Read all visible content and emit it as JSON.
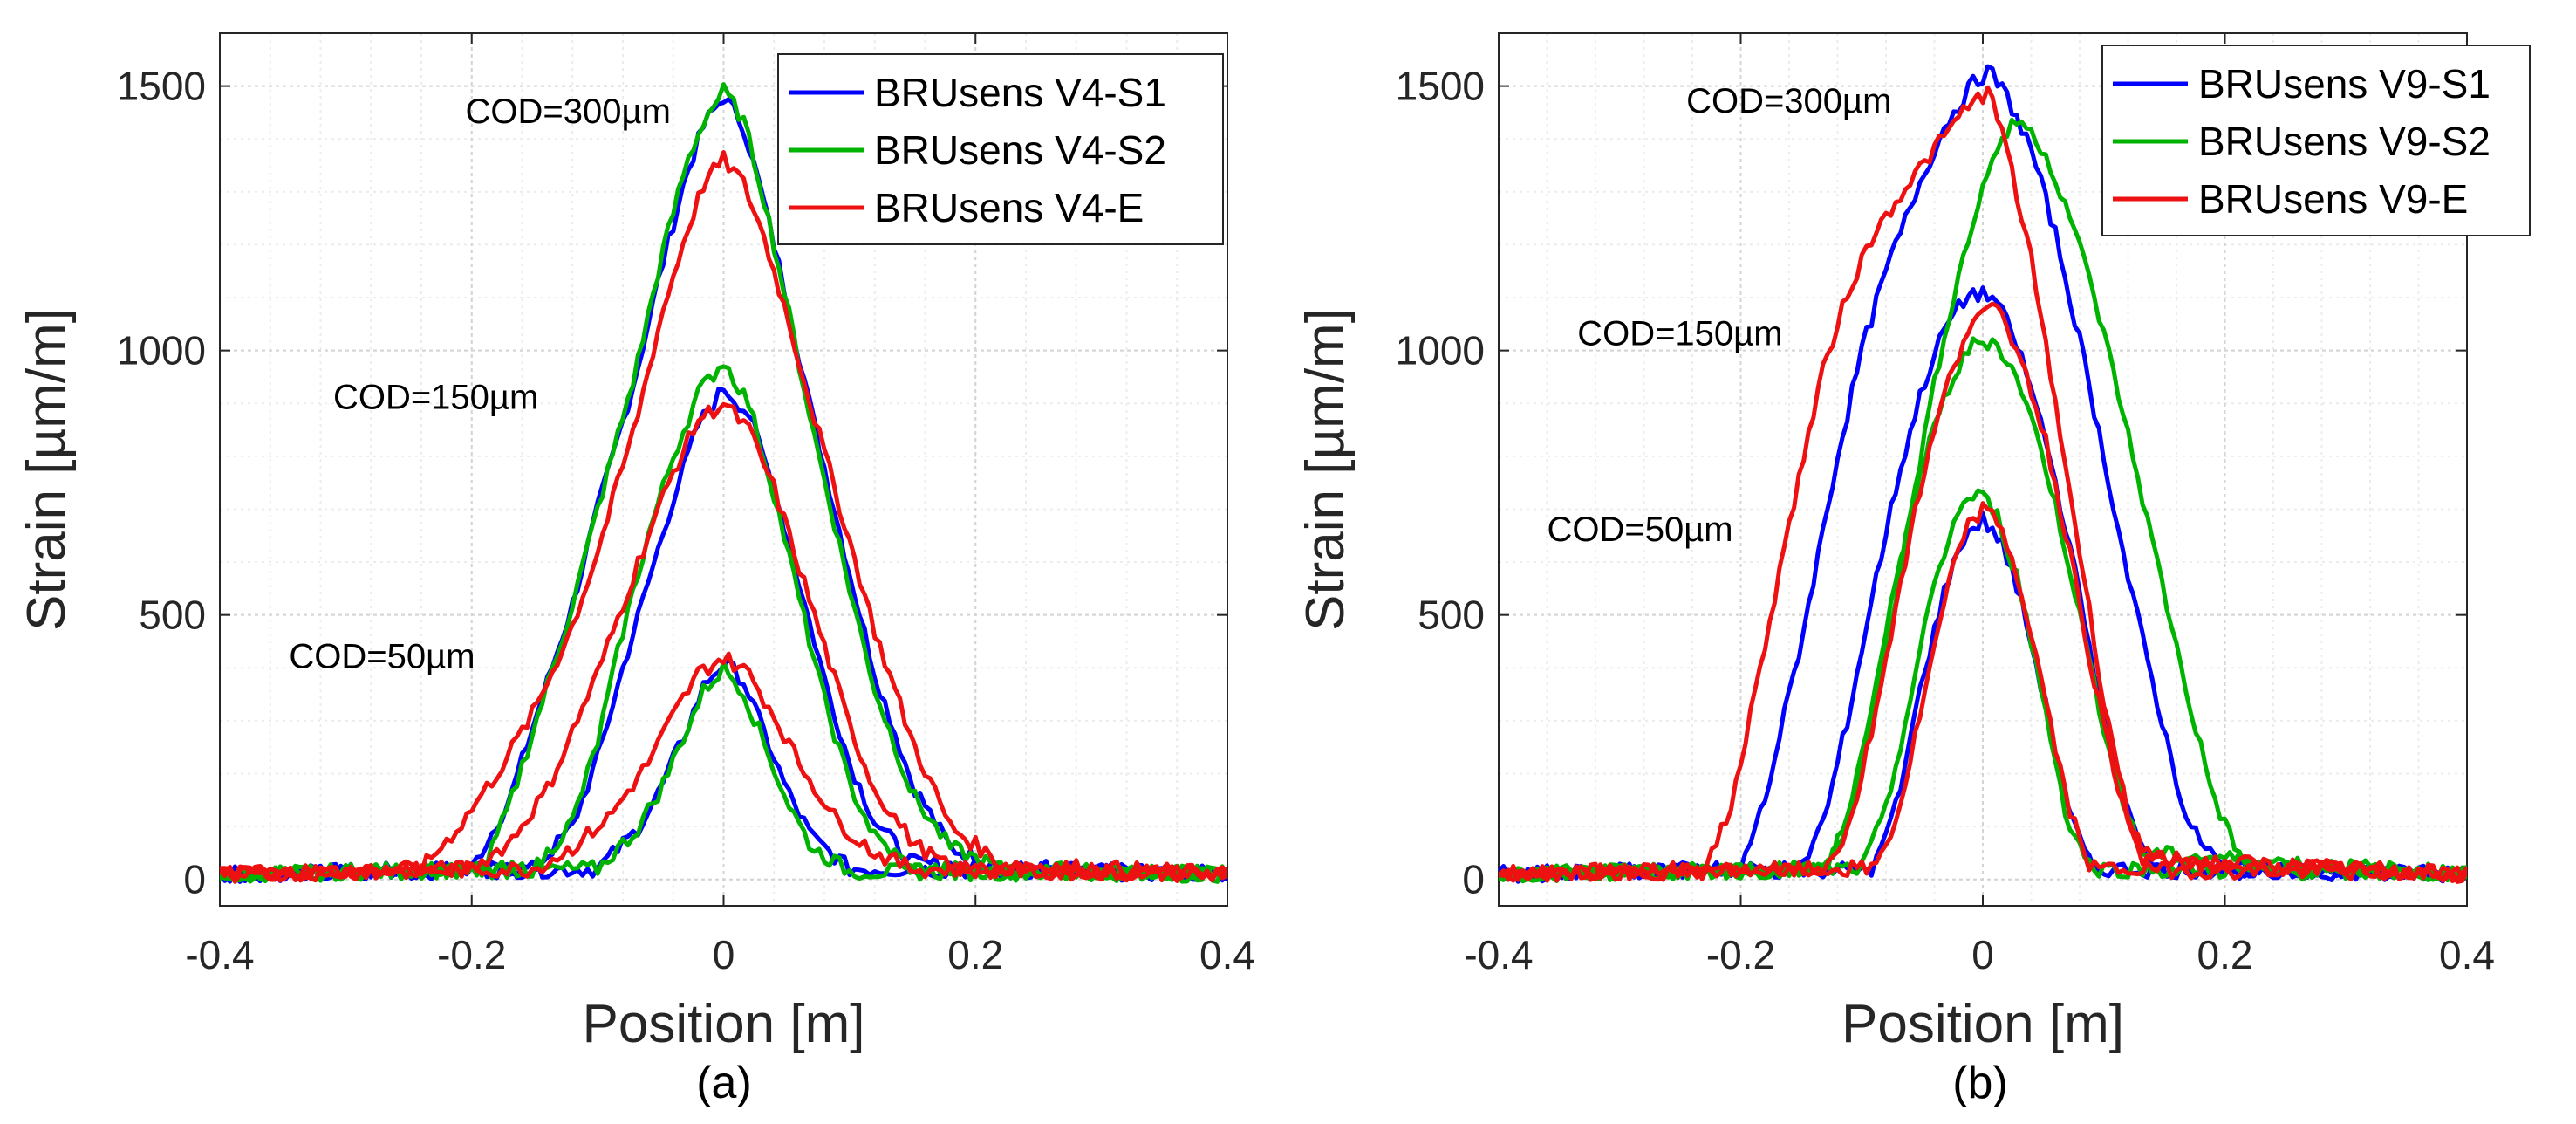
{
  "chart_data": [
    {
      "type": "line",
      "panel_label": "(a)",
      "xlabel": "Position [m]",
      "ylabel": "Strain [µm/m]",
      "xlim": [
        -0.4,
        0.4
      ],
      "ylim": [
        -50,
        1600
      ],
      "xticks": [
        -0.4,
        -0.2,
        0,
        0.2,
        0.4
      ],
      "xtick_labels": [
        "-0.4",
        "-0.2",
        "0",
        "0.2",
        "0.4"
      ],
      "yticks": [
        0,
        500,
        1000,
        1500
      ],
      "ytick_labels": [
        "0",
        "500",
        "1000",
        "1500"
      ],
      "grid": true,
      "legend_position": "top-right",
      "annotations": [
        {
          "text": "COD=300µm",
          "x": -0.205,
          "y": 1430
        },
        {
          "text": "COD=150µm",
          "x": -0.31,
          "y": 890
        },
        {
          "text": "COD=50µm",
          "x": -0.345,
          "y": 400
        }
      ],
      "series": [
        {
          "name": "BRUsens V4-S1",
          "color": "#0000ff",
          "curves": [
            {
              "cod": "300µm",
              "x": [
                -0.4,
                -0.2,
                -0.17,
                -0.15,
                -0.12,
                -0.1,
                -0.07,
                -0.05,
                -0.03,
                -0.015,
                0,
                0.015,
                0.03,
                0.05,
                0.07,
                0.1,
                0.12,
                0.15,
                0.18,
                0.22,
                0.4
              ],
              "y": [
                10,
                20,
                150,
                300,
                520,
                700,
                950,
                1150,
                1330,
                1430,
                1480,
                1430,
                1300,
                1100,
                880,
                580,
                390,
                180,
                60,
                20,
                10
              ]
            },
            {
              "cod": "150µm",
              "x": [
                -0.4,
                -0.15,
                -0.12,
                -0.1,
                -0.08,
                -0.06,
                -0.04,
                -0.02,
                0,
                0.02,
                0.04,
                0.06,
                0.08,
                0.1,
                0.12,
                0.15,
                0.4
              ],
              "y": [
                10,
                20,
                100,
                230,
                400,
                560,
                720,
                860,
                930,
                880,
                740,
                560,
                380,
                220,
                110,
                30,
                10
              ]
            },
            {
              "cod": "50µm",
              "x": [
                -0.4,
                -0.1,
                -0.07,
                -0.05,
                -0.03,
                -0.015,
                0,
                0.015,
                0.03,
                0.05,
                0.07,
                0.1,
                0.4
              ],
              "y": [
                10,
                20,
                90,
                170,
                280,
                370,
                410,
                380,
                290,
                170,
                80,
                20,
                10
              ]
            }
          ]
        },
        {
          "name": "BRUsens V4-S2",
          "color": "#00b300",
          "curves": [
            {
              "cod": "300µm",
              "x": [
                -0.4,
                -0.19,
                -0.17,
                -0.15,
                -0.12,
                -0.1,
                -0.07,
                -0.05,
                -0.03,
                -0.015,
                0,
                0.015,
                0.03,
                0.05,
                0.07,
                0.1,
                0.12,
                0.15,
                0.18,
                0.22,
                0.4
              ],
              "y": [
                10,
                20,
                140,
                290,
                520,
                700,
                960,
                1170,
                1350,
                1440,
                1490,
                1440,
                1310,
                1090,
                860,
                550,
                360,
                160,
                60,
                20,
                10
              ]
            },
            {
              "cod": "150µm",
              "x": [
                -0.4,
                -0.15,
                -0.12,
                -0.1,
                -0.08,
                -0.06,
                -0.04,
                -0.02,
                0,
                0.02,
                0.04,
                0.06,
                0.08,
                0.1,
                0.12,
                0.15,
                0.4
              ],
              "y": [
                10,
                20,
                110,
                260,
                470,
                650,
                800,
                920,
                980,
                900,
                730,
                530,
                340,
                180,
                80,
                20,
                10
              ]
            },
            {
              "cod": "50µm",
              "x": [
                -0.4,
                -0.1,
                -0.07,
                -0.05,
                -0.03,
                -0.015,
                0,
                0.015,
                0.03,
                0.05,
                0.07,
                0.1,
                0.4
              ],
              "y": [
                10,
                20,
                90,
                170,
                280,
                360,
                400,
                360,
                270,
                150,
                60,
                15,
                10
              ]
            }
          ]
        },
        {
          "name": "BRUsens V4-E",
          "color": "#ee1111",
          "curves": [
            {
              "cod": "300µm",
              "x": [
                -0.4,
                -0.24,
                -0.21,
                -0.18,
                -0.15,
                -0.12,
                -0.1,
                -0.07,
                -0.05,
                -0.03,
                -0.015,
                0,
                0.015,
                0.03,
                0.05,
                0.07,
                0.1,
                0.12,
                0.15,
                0.18,
                0.22,
                0.4
              ],
              "y": [
                10,
                20,
                100,
                200,
                320,
                480,
                620,
                860,
                1060,
                1220,
                1320,
                1360,
                1320,
                1230,
                1070,
                890,
                640,
                470,
                260,
                100,
                30,
                10
              ]
            },
            {
              "cod": "150µm",
              "x": [
                -0.4,
                -0.2,
                -0.17,
                -0.14,
                -0.12,
                -0.1,
                -0.08,
                -0.06,
                -0.04,
                -0.02,
                0,
                0.02,
                0.04,
                0.06,
                0.08,
                0.1,
                0.12,
                0.15,
                0.18,
                0.4
              ],
              "y": [
                10,
                20,
                70,
                170,
                280,
                390,
                520,
                650,
                770,
                870,
                900,
                850,
                740,
                590,
                440,
                290,
                170,
                70,
                20,
                10
              ]
            },
            {
              "cod": "50µm",
              "x": [
                -0.4,
                -0.15,
                -0.12,
                -0.09,
                -0.06,
                -0.04,
                -0.02,
                0,
                0.02,
                0.04,
                0.06,
                0.09,
                0.12,
                0.15,
                0.4
              ],
              "y": [
                10,
                20,
                60,
                120,
                220,
                310,
                390,
                420,
                390,
                310,
                220,
                110,
                50,
                20,
                10
              ]
            }
          ]
        }
      ]
    },
    {
      "type": "line",
      "panel_label": "(b)",
      "xlabel": "Position [m]",
      "ylabel": "Strain [µm/m]",
      "xlim": [
        -0.4,
        0.4
      ],
      "ylim": [
        -50,
        1600
      ],
      "xticks": [
        -0.4,
        -0.2,
        0,
        0.2,
        0.4
      ],
      "xtick_labels": [
        "-0.4",
        "-0.2",
        "0",
        "0.2",
        "0.4"
      ],
      "yticks": [
        0,
        500,
        1000,
        1500
      ],
      "ytick_labels": [
        "0",
        "500",
        "1000",
        "1500"
      ],
      "grid": true,
      "legend_position": "top-right",
      "annotations": [
        {
          "text": "COD=300µm",
          "x": -0.245,
          "y": 1450
        },
        {
          "text": "COD=150µm",
          "x": -0.335,
          "y": 1010
        },
        {
          "text": "COD=50µm",
          "x": -0.36,
          "y": 640
        }
      ],
      "series": [
        {
          "name": "BRUsens V9-S1",
          "color": "#0000ff",
          "curves": [
            {
              "cod": "300µm",
              "x": [
                -0.4,
                -0.2,
                -0.18,
                -0.15,
                -0.12,
                -0.1,
                -0.08,
                -0.05,
                -0.03,
                -0.01,
                0.005,
                0.02,
                0.04,
                0.06,
                0.08,
                0.1,
                0.12,
                0.15,
                0.17,
                0.2,
                0.4
              ],
              "y": [
                10,
                20,
                150,
                450,
                800,
                1000,
                1150,
                1330,
                1430,
                1500,
                1530,
                1480,
                1380,
                1220,
                1020,
                800,
                570,
                280,
                100,
                20,
                10
              ]
            },
            {
              "cod": "150µm",
              "x": [
                -0.4,
                -0.15,
                -0.13,
                -0.11,
                -0.09,
                -0.07,
                -0.05,
                -0.03,
                -0.01,
                0.01,
                0.03,
                0.05,
                0.07,
                0.09,
                0.11,
                0.13,
                0.15,
                0.4
              ],
              "y": [
                10,
                20,
                120,
                320,
                550,
                760,
                930,
                1050,
                1110,
                1100,
                1000,
                850,
                650,
                420,
                200,
                60,
                20,
                10
              ]
            },
            {
              "cod": "50µm",
              "x": [
                -0.4,
                -0.09,
                -0.07,
                -0.05,
                -0.03,
                -0.015,
                0,
                0.015,
                0.03,
                0.05,
                0.07,
                0.09,
                0.4
              ],
              "y": [
                10,
                20,
                150,
                380,
                560,
                650,
                680,
                640,
                540,
                350,
                130,
                20,
                10
              ]
            }
          ]
        },
        {
          "name": "BRUsens V9-S2",
          "color": "#00b300",
          "curves": [
            {
              "cod": "300µm",
              "x": [
                -0.4,
                -0.13,
                -0.11,
                -0.09,
                -0.07,
                -0.05,
                -0.03,
                -0.01,
                0.01,
                0.03,
                0.05,
                0.07,
                0.09,
                0.11,
                0.13,
                0.15,
                0.17,
                0.19,
                0.21,
                0.23,
                0.4
              ],
              "y": [
                10,
                20,
                120,
                320,
                560,
                820,
                1050,
                1230,
                1380,
                1440,
                1380,
                1270,
                1120,
                940,
                740,
                540,
                340,
                160,
                50,
                20,
                10
              ]
            },
            {
              "cod": "150µm",
              "x": [
                -0.4,
                -0.13,
                -0.11,
                -0.09,
                -0.07,
                -0.05,
                -0.03,
                -0.01,
                0.01,
                0.03,
                0.05,
                0.07,
                0.09,
                0.11,
                0.13,
                0.4
              ],
              "y": [
                10,
                20,
                130,
                350,
                580,
                780,
                920,
                1010,
                1020,
                940,
                800,
                610,
                390,
                190,
                50,
                10
              ]
            },
            {
              "cod": "50µm",
              "x": [
                -0.4,
                -0.1,
                -0.08,
                -0.06,
                -0.04,
                -0.02,
                -0.005,
                0.01,
                0.03,
                0.05,
                0.07,
                0.09,
                0.4
              ],
              "y": [
                10,
                20,
                130,
                340,
                560,
                700,
                730,
                700,
                560,
                340,
                110,
                20,
                10
              ]
            }
          ]
        },
        {
          "name": "BRUsens V9-E",
          "color": "#ee1111",
          "curves": [
            {
              "cod": "300µm",
              "x": [
                -0.4,
                -0.23,
                -0.21,
                -0.19,
                -0.17,
                -0.15,
                -0.13,
                -0.11,
                -0.09,
                -0.07,
                -0.05,
                -0.03,
                -0.01,
                0.005,
                0.02,
                0.04,
                0.06,
                0.08,
                0.1,
                0.12,
                0.14,
                0.4
              ],
              "y": [
                10,
                20,
                120,
                330,
                560,
                780,
                980,
                1120,
                1220,
                1290,
                1350,
                1410,
                1470,
                1490,
                1380,
                1170,
                900,
                620,
                340,
                120,
                30,
                10
              ]
            },
            {
              "cod": "150µm",
              "x": [
                -0.4,
                -0.13,
                -0.11,
                -0.09,
                -0.07,
                -0.05,
                -0.03,
                -0.01,
                0.01,
                0.03,
                0.05,
                0.07,
                0.09,
                0.11,
                0.13,
                0.4
              ],
              "y": [
                10,
                20,
                100,
                300,
                540,
                760,
                930,
                1060,
                1080,
                1000,
                850,
                640,
                400,
                180,
                40,
                10
              ]
            },
            {
              "cod": "50µm",
              "x": [
                -0.4,
                -0.09,
                -0.07,
                -0.05,
                -0.03,
                -0.015,
                0,
                0.015,
                0.03,
                0.05,
                0.07,
                0.09,
                0.4
              ],
              "y": [
                10,
                20,
                120,
                330,
                540,
                660,
                700,
                670,
                560,
                360,
                140,
                20,
                10
              ]
            }
          ]
        }
      ]
    }
  ]
}
